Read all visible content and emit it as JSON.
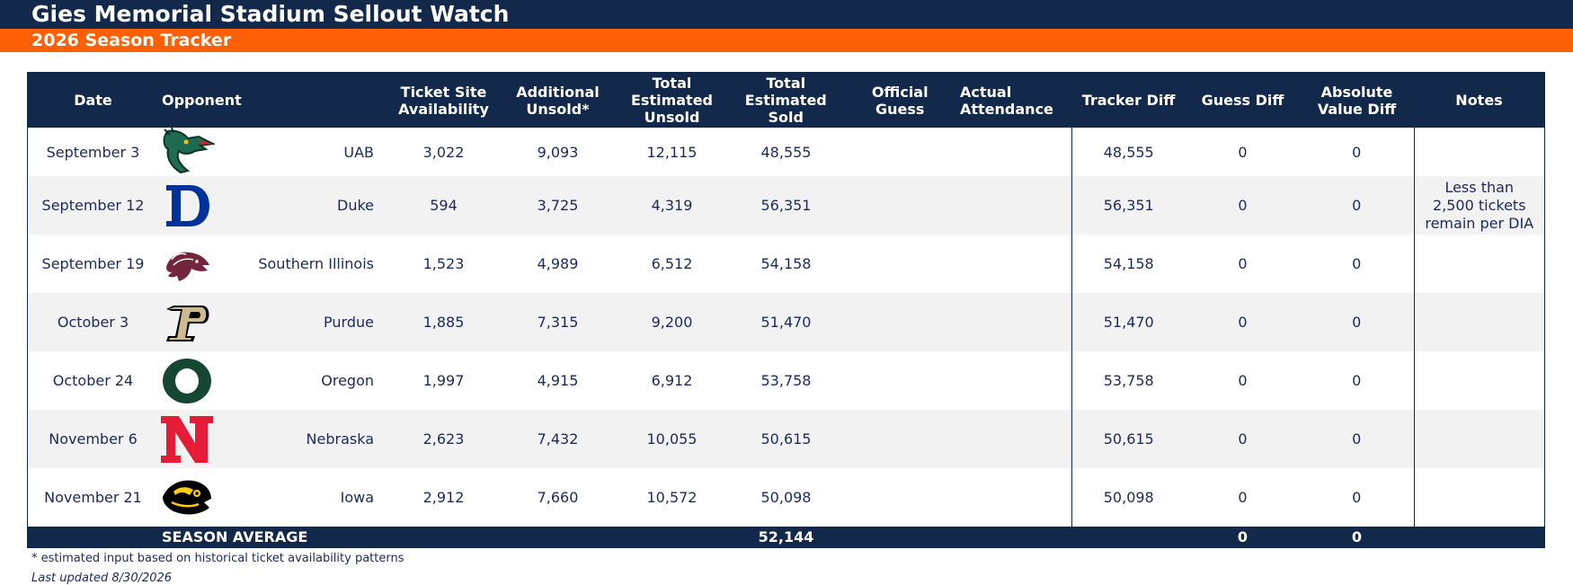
{
  "header": {
    "title": "Gies Memorial Stadium Sellout Watch",
    "subtitle": "2026 Season Tracker"
  },
  "table": {
    "columns": [
      "Date",
      "Opponent",
      "",
      "Ticket Site\nAvailability",
      "Additional\nUnsold*",
      "Total\nEstimated\nUnsold",
      "Total\nEstimated\nSold",
      "Official\nGuess",
      "Actual\nAttendance",
      "Tracker Diff",
      "Guess Diff",
      "Absolute\nValue Diff",
      "Notes"
    ],
    "rows": [
      {
        "date": "September 3",
        "logo": "uab-dragon-logo",
        "opponent": "UAB",
        "ticket_site": "3,022",
        "additional_unsold": "9,093",
        "total_unsold": "12,115",
        "total_sold": "48,555",
        "official_guess": "",
        "actual_attendance": "",
        "tracker_diff": "48,555",
        "guess_diff": "0",
        "abs_diff": "0",
        "notes": ""
      },
      {
        "date": "September 12",
        "logo": "duke-d-logo",
        "opponent": "Duke",
        "ticket_site": "594",
        "additional_unsold": "3,725",
        "total_unsold": "4,319",
        "total_sold": "56,351",
        "official_guess": "",
        "actual_attendance": "",
        "tracker_diff": "56,351",
        "guess_diff": "0",
        "abs_diff": "0",
        "notes": "Less than 2,500 tickets remain per DIA"
      },
      {
        "date": "September 19",
        "logo": "southern-illinois-saluki-logo",
        "opponent": "Southern Illinois",
        "ticket_site": "1,523",
        "additional_unsold": "4,989",
        "total_unsold": "6,512",
        "total_sold": "54,158",
        "official_guess": "",
        "actual_attendance": "",
        "tracker_diff": "54,158",
        "guess_diff": "0",
        "abs_diff": "0",
        "notes": ""
      },
      {
        "date": "October 3",
        "logo": "purdue-p-logo",
        "opponent": "Purdue",
        "ticket_site": "1,885",
        "additional_unsold": "7,315",
        "total_unsold": "9,200",
        "total_sold": "51,470",
        "official_guess": "",
        "actual_attendance": "",
        "tracker_diff": "51,470",
        "guess_diff": "0",
        "abs_diff": "0",
        "notes": ""
      },
      {
        "date": "October 24",
        "logo": "oregon-o-logo",
        "opponent": "Oregon",
        "ticket_site": "1,997",
        "additional_unsold": "4,915",
        "total_unsold": "6,912",
        "total_sold": "53,758",
        "official_guess": "",
        "actual_attendance": "",
        "tracker_diff": "53,758",
        "guess_diff": "0",
        "abs_diff": "0",
        "notes": ""
      },
      {
        "date": "November 6",
        "logo": "nebraska-n-logo",
        "opponent": "Nebraska",
        "ticket_site": "2,623",
        "additional_unsold": "7,432",
        "total_unsold": "10,055",
        "total_sold": "50,615",
        "official_guess": "",
        "actual_attendance": "",
        "tracker_diff": "50,615",
        "guess_diff": "0",
        "abs_diff": "0",
        "notes": ""
      },
      {
        "date": "November 21",
        "logo": "iowa-hawkeye-logo",
        "opponent": "Iowa",
        "ticket_site": "2,912",
        "additional_unsold": "7,660",
        "total_unsold": "10,572",
        "total_sold": "50,098",
        "official_guess": "",
        "actual_attendance": "",
        "tracker_diff": "50,098",
        "guess_diff": "0",
        "abs_diff": "0",
        "notes": ""
      }
    ],
    "footer": {
      "label": "SEASON AVERAGE",
      "total_sold": "52,144",
      "guess_diff": "0",
      "abs_diff": "0"
    }
  },
  "footnote": "* estimated input based on historical ticket availability patterns",
  "last_updated": "Last updated 8/30/2026",
  "colors": {
    "navy": "#13294b",
    "orange": "#ff5f05",
    "stripe": "#f2f2f2"
  }
}
